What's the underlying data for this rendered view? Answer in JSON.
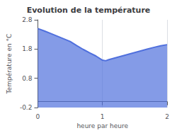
{
  "chart_data": {
    "type": "area",
    "title": "Evolution de la température",
    "xlabel": "heure par heure",
    "ylabel": "Température en °C",
    "x": [
      0,
      0.1,
      0.2,
      0.3,
      0.4,
      0.5,
      0.6,
      0.7,
      0.8,
      0.9,
      1.0,
      1.05,
      1.1,
      1.2,
      1.3,
      1.4,
      1.5,
      1.6,
      1.7,
      1.8,
      1.9,
      2.0
    ],
    "values": [
      2.5,
      2.42,
      2.33,
      2.24,
      2.15,
      2.06,
      1.92,
      1.79,
      1.67,
      1.56,
      1.42,
      1.4,
      1.44,
      1.5,
      1.56,
      1.62,
      1.68,
      1.74,
      1.8,
      1.86,
      1.91,
      1.95
    ],
    "xlim": [
      0,
      2
    ],
    "ylim": [
      -0.2,
      2.8
    ],
    "xticks": [
      0,
      1,
      2
    ],
    "yticks": [
      -0.2,
      0.8,
      1.8,
      2.8
    ],
    "grid": "x"
  }
}
